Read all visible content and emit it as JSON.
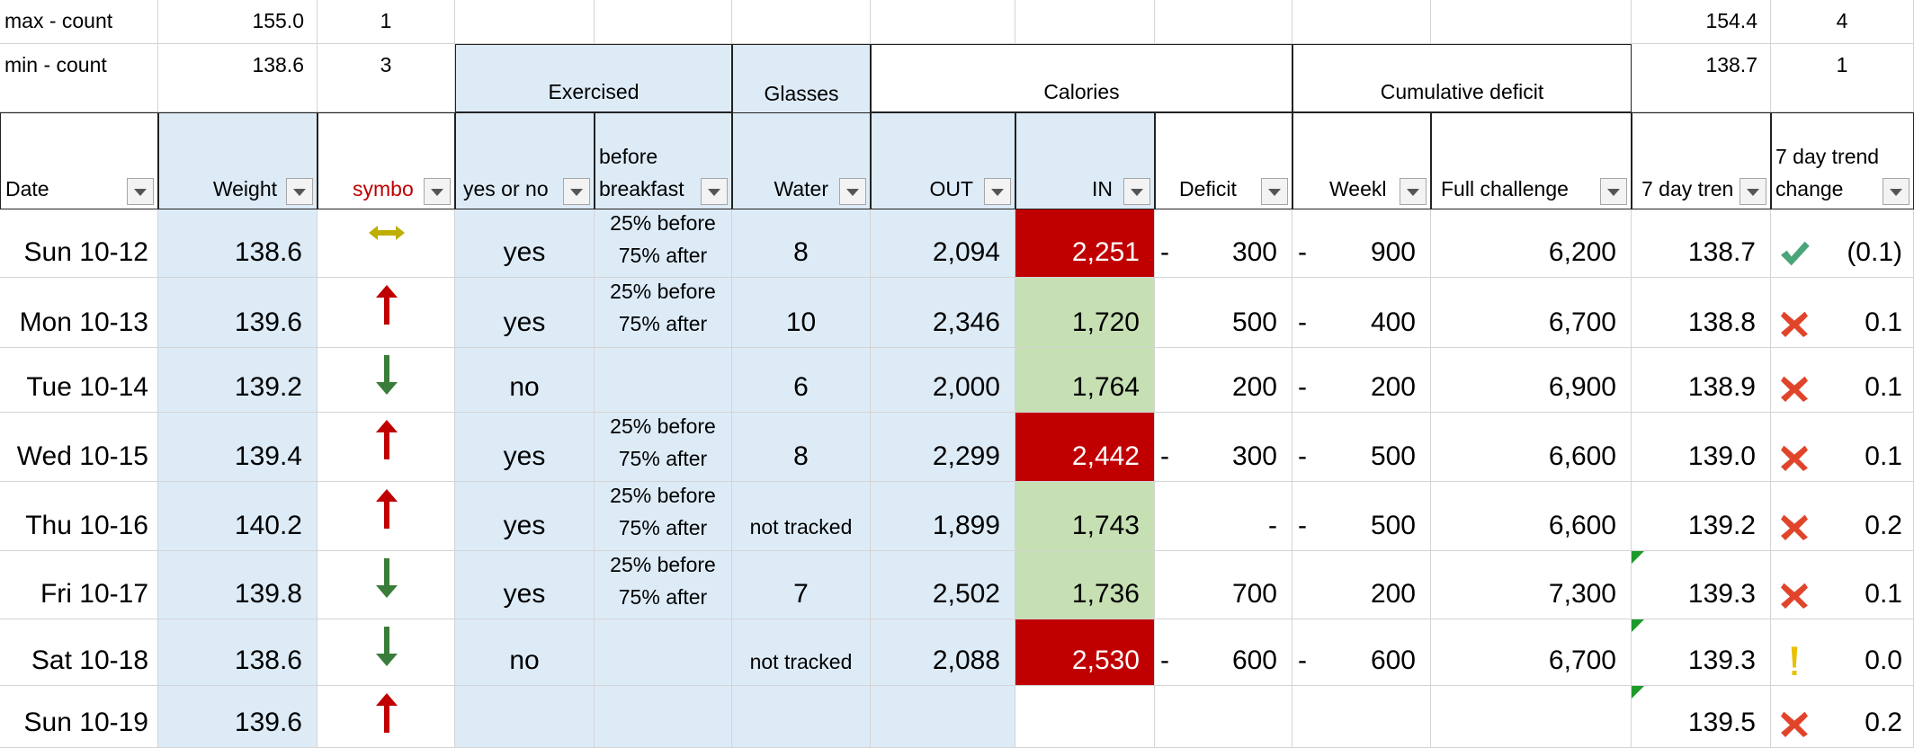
{
  "top_rows": [
    {
      "label": "max - count",
      "weight": "155.0",
      "symbol": "1",
      "trend": "154.4",
      "trend_change": "4"
    },
    {
      "label": "min - count",
      "weight": "138.6",
      "symbol": "3",
      "trend": "138.7",
      "trend_change": "1"
    }
  ],
  "groups": {
    "exercised": "Exercised",
    "glasses": "Glasses",
    "calories": "Calories",
    "cumulative": "Cumulative deficit"
  },
  "headers": [
    "Date",
    "Weight",
    "symbo",
    "yes or no",
    "before breakfast",
    "Water",
    "OUT",
    "IN",
    "Deficit",
    "Weekl",
    "Full challenge",
    "7 day tren",
    "7 day trend change"
  ],
  "rows": [
    {
      "date": "Sun 10-12",
      "weight": "138.6",
      "symbol": "both",
      "exercised": "yes",
      "timing": [
        "25% before",
        "75% after"
      ],
      "water": "8",
      "out": "2,094",
      "in": "2,251",
      "in_status": "over",
      "deficit_sign": "-",
      "deficit": "300",
      "weekly_sign": "-",
      "weekly": "900",
      "full": "6,200",
      "trend": "138.7",
      "trend_icon": "check",
      "trend_change": "(0.1)"
    },
    {
      "date": "Mon 10-13",
      "weight": "139.6",
      "symbol": "up",
      "exercised": "yes",
      "timing": [
        "25% before",
        "75% after"
      ],
      "water": "10",
      "out": "2,346",
      "in": "1,720",
      "in_status": "under",
      "deficit": "500",
      "weekly_sign": "-",
      "weekly": "400",
      "full": "6,700",
      "trend": "138.8",
      "trend_icon": "cross",
      "trend_change": "0.1"
    },
    {
      "date": "Tue 10-14",
      "weight": "139.2",
      "symbol": "down",
      "exercised": "no",
      "water": "6",
      "out": "2,000",
      "in": "1,764",
      "in_status": "under",
      "deficit": "200",
      "weekly_sign": "-",
      "weekly": "200",
      "full": "6,900",
      "trend": "138.9",
      "trend_icon": "cross",
      "trend_change": "0.1"
    },
    {
      "date": "Wed 10-15",
      "weight": "139.4",
      "symbol": "up",
      "exercised": "yes",
      "timing": [
        "25% before",
        "75% after"
      ],
      "water": "8",
      "out": "2,299",
      "in": "2,442",
      "in_status": "over",
      "deficit_sign": "-",
      "deficit": "300",
      "weekly_sign": "-",
      "weekly": "500",
      "full": "6,600",
      "trend": "139.0",
      "trend_icon": "cross",
      "trend_change": "0.1"
    },
    {
      "date": "Thu 10-16",
      "weight": "140.2",
      "symbol": "up",
      "exercised": "yes",
      "timing": [
        "25% before",
        "75% after"
      ],
      "water_note": "not tracked",
      "out": "1,899",
      "in": "1,743",
      "in_status": "under",
      "deficit": "-",
      "weekly_sign": "-",
      "weekly": "500",
      "full": "6,600",
      "trend": "139.2",
      "trend_icon": "cross",
      "trend_change": "0.2"
    },
    {
      "date": "Fri 10-17",
      "weight": "139.8",
      "symbol": "down",
      "exercised": "yes",
      "timing": [
        "25% before",
        "75% after"
      ],
      "water": "7",
      "out": "2,502",
      "in": "1,736",
      "in_status": "under",
      "deficit": "700",
      "weekly": "200",
      "full": "7,300",
      "trend": "139.3",
      "trend_icon": "cross",
      "trend_change": "0.1",
      "comment": true
    },
    {
      "date": "Sat 10-18",
      "weight": "138.6",
      "symbol": "down",
      "exercised": "no",
      "water_note": "not tracked",
      "out": "2,088",
      "in": "2,530",
      "in_status": "over",
      "deficit_sign": "-",
      "deficit": "600",
      "weekly_sign": "-",
      "weekly": "600",
      "full": "6,700",
      "trend": "139.3",
      "trend_icon": "warn",
      "trend_change": "0.0",
      "comment": true
    },
    {
      "date": "Sun 10-19",
      "weight": "139.6",
      "symbol": "up",
      "trend": "139.5",
      "trend_icon": "cross",
      "trend_change": "0.2",
      "comment": true
    }
  ]
}
